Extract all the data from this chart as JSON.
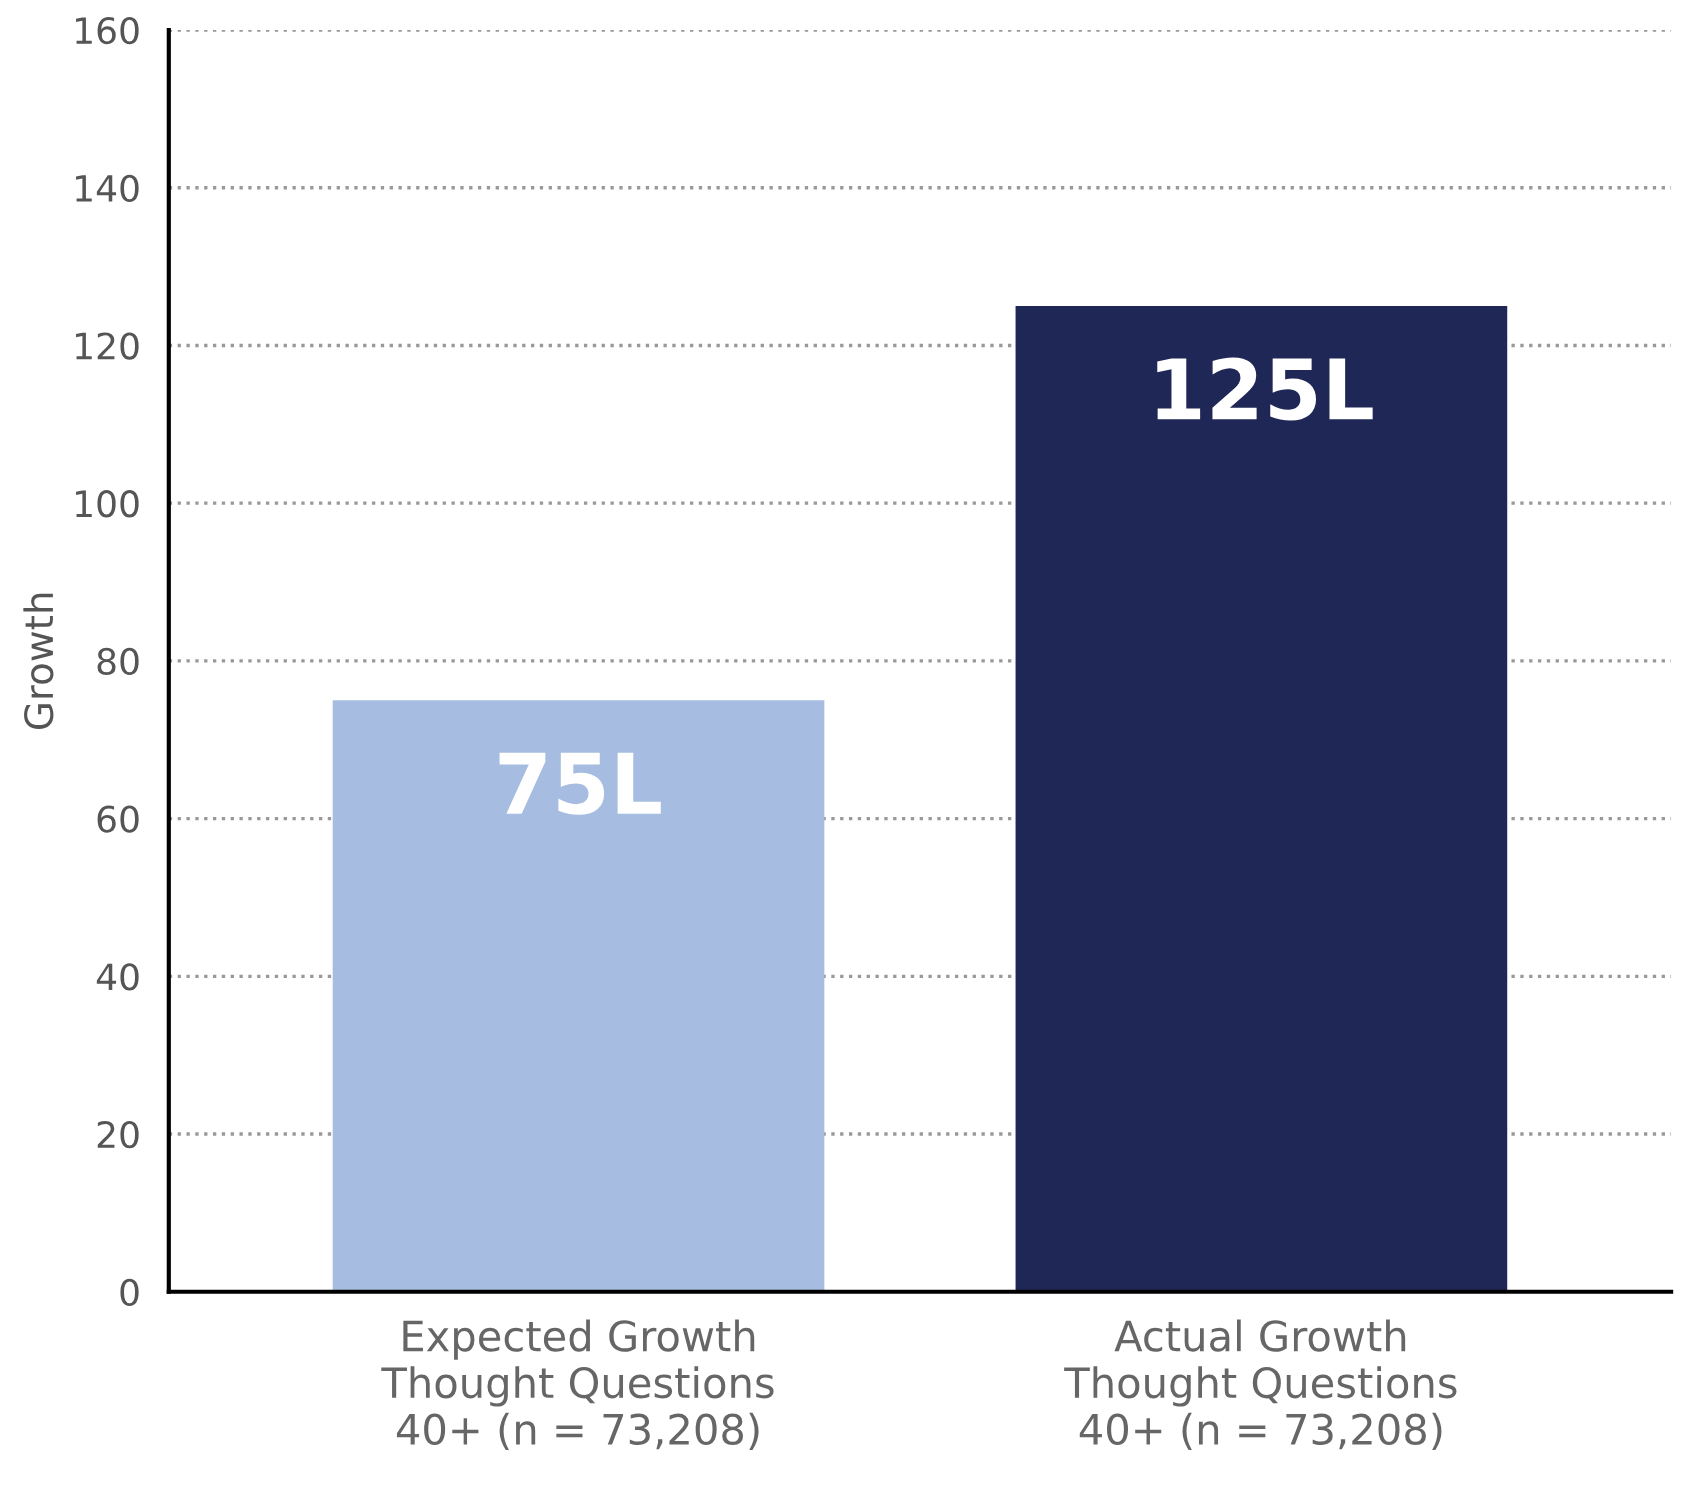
{
  "chart_data": {
    "type": "bar",
    "ylabel": "Growth",
    "categories": [
      "Expected Growth\nThought Questions\n40+ (n = 73,208)",
      "Actual Growth\nThought Questions\n40+ (n = 73,208)"
    ],
    "values": [
      75,
      125
    ],
    "colors": [
      "#a6bce0",
      "#1f2756"
    ],
    "value_labels": [
      "75L",
      "125L"
    ],
    "ylim": [
      0,
      160
    ],
    "yticks": [
      0,
      20,
      40,
      60,
      80,
      100,
      120,
      140,
      160
    ],
    "grid": "y"
  }
}
